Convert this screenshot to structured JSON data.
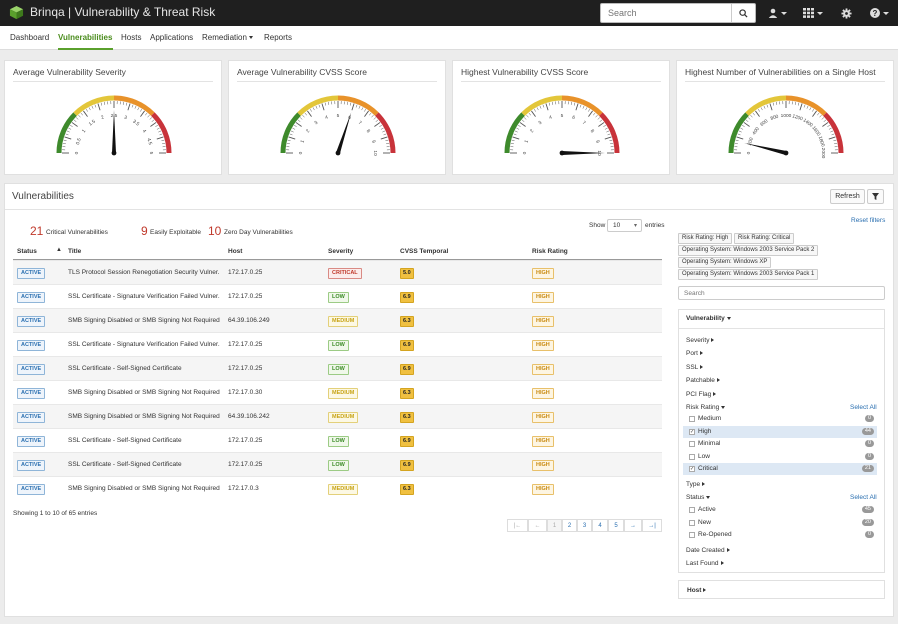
{
  "app": {
    "brand": "Brinqa",
    "title": "Vulnerability & Threat Risk",
    "search_placeholder": "Search"
  },
  "nav": {
    "items": [
      "Dashboard",
      "Vulnerabilities",
      "Hosts",
      "Applications",
      "Remediation",
      "Reports"
    ],
    "active": "Vulnerabilities"
  },
  "gauges": [
    {
      "title": "Average Vulnerability Severity",
      "ticks": [
        "0",
        "0.5",
        "1",
        "1.5",
        "2",
        "2.5",
        "3",
        "3.5",
        "4",
        "4.5",
        "5"
      ],
      "min": 0,
      "max": 5,
      "value": 2.5
    },
    {
      "title": "Average Vulnerability CVSS Score",
      "ticks": [
        "0",
        "1",
        "2",
        "3",
        "4",
        "5",
        "6",
        "7",
        "8",
        "9",
        "10"
      ],
      "min": 0,
      "max": 10,
      "value": 6
    },
    {
      "title": "Highest Vulnerability CVSS Score",
      "ticks": [
        "0",
        "1",
        "2",
        "3",
        "4",
        "5",
        "6",
        "7",
        "8",
        "9",
        "10"
      ],
      "min": 0,
      "max": 10,
      "value": 10
    },
    {
      "title": "Highest Number of Vulnerabilities on a Single Host",
      "ticks": [
        "0",
        "200",
        "400",
        "600",
        "800",
        "1000",
        "1200",
        "1400",
        "1600",
        "1800",
        "2000"
      ],
      "min": 0,
      "max": 2000,
      "value": 150
    }
  ],
  "vuln": {
    "title": "Vulnerabilities",
    "refresh_label": "Refresh",
    "stats": [
      {
        "num": "21",
        "label": "Critical Vulnerabilities"
      },
      {
        "num": "9",
        "label": "Easily Exploitable"
      },
      {
        "num": "10",
        "label": "Zero Day Vulnerabilities"
      }
    ],
    "show_label": "Show",
    "entries_value": "10",
    "entries_label": "entries",
    "columns": [
      "Status",
      "Title",
      "Host",
      "Severity",
      "CVSS Temporal",
      "Risk Rating"
    ],
    "rows": [
      {
        "status": "ACTIVE",
        "title": "TLS Protocol Session Renegotiation Security Vulner...",
        "host": "172.17.0.25",
        "severity": "CRITICAL",
        "cvss": "5.0",
        "risk": "HIGH"
      },
      {
        "status": "ACTIVE",
        "title": "SSL Certificate - Signature Verification Failed Vulner...",
        "host": "172.17.0.25",
        "severity": "LOW",
        "cvss": "6.9",
        "risk": "HIGH"
      },
      {
        "status": "ACTIVE",
        "title": "SMB Signing Disabled or SMB Signing Not Required",
        "host": "64.39.106.249",
        "severity": "MEDIUM",
        "cvss": "6.3",
        "risk": "HIGH"
      },
      {
        "status": "ACTIVE",
        "title": "SSL Certificate - Signature Verification Failed Vulner...",
        "host": "172.17.0.25",
        "severity": "LOW",
        "cvss": "6.9",
        "risk": "HIGH"
      },
      {
        "status": "ACTIVE",
        "title": "SSL Certificate - Self-Signed Certificate",
        "host": "172.17.0.25",
        "severity": "LOW",
        "cvss": "6.9",
        "risk": "HIGH"
      },
      {
        "status": "ACTIVE",
        "title": "SMB Signing Disabled or SMB Signing Not Required",
        "host": "172.17.0.30",
        "severity": "MEDIUM",
        "cvss": "6.3",
        "risk": "HIGH"
      },
      {
        "status": "ACTIVE",
        "title": "SMB Signing Disabled or SMB Signing Not Required",
        "host": "64.39.106.242",
        "severity": "MEDIUM",
        "cvss": "6.3",
        "risk": "HIGH"
      },
      {
        "status": "ACTIVE",
        "title": "SSL Certificate - Self-Signed Certificate",
        "host": "172.17.0.25",
        "severity": "LOW",
        "cvss": "6.9",
        "risk": "HIGH"
      },
      {
        "status": "ACTIVE",
        "title": "SSL Certificate - Self-Signed Certificate",
        "host": "172.17.0.25",
        "severity": "LOW",
        "cvss": "6.9",
        "risk": "HIGH"
      },
      {
        "status": "ACTIVE",
        "title": "SMB Signing Disabled or SMB Signing Not Required",
        "host": "172.17.0.3",
        "severity": "MEDIUM",
        "cvss": "6.3",
        "risk": "HIGH"
      }
    ],
    "showing": "Showing 1 to 10 of 65 entries",
    "pagination": [
      "|←",
      "←",
      "1",
      "2",
      "3",
      "4",
      "5",
      "→",
      "→|"
    ]
  },
  "filters": {
    "reset_label": "Reset filters",
    "chips": [
      "Risk Rating: High",
      "Risk Rating: Critical",
      "Operating System: Windows 2003 Service Pack 2",
      "Operating System: Windows XP",
      "Operating System: Windows 2003 Service Pack 1"
    ],
    "search_placeholder": "Search",
    "vulnerability_header": "Vulnerability",
    "facets_top": [
      "Severity",
      "Port",
      "SSL",
      "Patchable",
      "PCI Flag"
    ],
    "risk_rating": {
      "label": "Risk Rating",
      "select_all": "Select All",
      "options": [
        {
          "label": "Medium",
          "count": "0",
          "checked": false
        },
        {
          "label": "High",
          "count": "44",
          "checked": true
        },
        {
          "label": "Minimal",
          "count": "0",
          "checked": false
        },
        {
          "label": "Low",
          "count": "0",
          "checked": false
        },
        {
          "label": "Critical",
          "count": "21",
          "checked": true
        }
      ]
    },
    "type_label": "Type",
    "status": {
      "label": "Status",
      "select_all": "Select All",
      "options": [
        {
          "label": "Active",
          "count": "45",
          "checked": false
        },
        {
          "label": "New",
          "count": "20",
          "checked": false
        },
        {
          "label": "Re-Opened",
          "count": "0",
          "checked": false
        }
      ]
    },
    "facets_bottom": [
      "Date Created",
      "Last Found"
    ],
    "host_header": "Host"
  }
}
